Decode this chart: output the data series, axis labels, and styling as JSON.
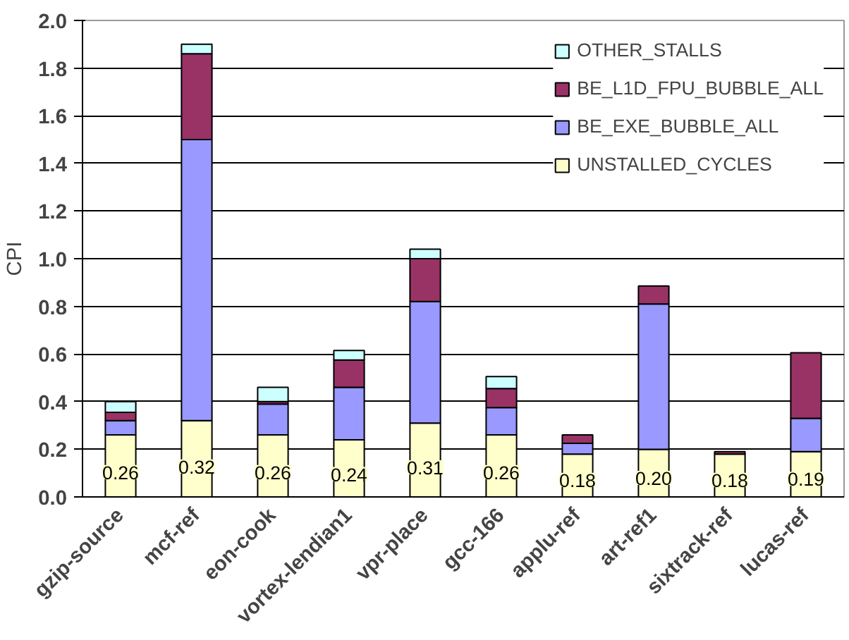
{
  "chart_data": {
    "type": "bar",
    "stacked": true,
    "ylabel": "CPI",
    "categories": [
      "gzip-source",
      "mcf-ref",
      "eon-cook",
      "vortex-lendian1",
      "vpr-place",
      "gcc-166",
      "applu-ref",
      "art-ref1",
      "sixtrack-ref",
      "lucas-ref"
    ],
    "series": [
      {
        "name": "UNSTALLED_CYCLES",
        "color": "#ffffcc",
        "values": [
          0.26,
          0.32,
          0.26,
          0.24,
          0.31,
          0.26,
          0.18,
          0.2,
          0.18,
          0.19
        ],
        "value_labels": [
          "0.26",
          "0.32",
          "0.26",
          "0.24",
          "0.31",
          "0.26",
          "0.18",
          "0.20",
          "0.18",
          "0.19"
        ]
      },
      {
        "name": "BE_EXE_BUBBLE_ALL",
        "color": "#9999ff",
        "values": [
          0.06,
          1.18,
          0.13,
          0.22,
          0.51,
          0.115,
          0.045,
          0.61,
          null,
          0.14
        ]
      },
      {
        "name": "BE_L1D_FPU_BUBBLE_ALL",
        "color": "#993366",
        "values": [
          0.035,
          0.36,
          0.01,
          0.115,
          0.18,
          0.08,
          0.035,
          0.075,
          0.01,
          0.275
        ]
      },
      {
        "name": "OTHER_STALLS",
        "color": "#ccffff",
        "values": [
          0.045,
          0.04,
          0.06,
          0.04,
          0.04,
          0.05,
          null,
          null,
          null,
          null
        ]
      }
    ],
    "ylim": [
      0,
      2.0
    ],
    "yticks": [
      {
        "value": 0,
        "label": "0.0"
      },
      {
        "value": 0.2,
        "label": "0.2"
      },
      {
        "value": 0.4,
        "label": "0.4"
      },
      {
        "value": 0.6,
        "label": "0.6"
      },
      {
        "value": 0.8,
        "label": "0.8"
      },
      {
        "value": 1.0,
        "label": "1.0"
      },
      {
        "value": 1.2,
        "label": "1.2"
      },
      {
        "value": 1.4,
        "label": "1.4"
      },
      {
        "value": 1.6,
        "label": "1.6"
      },
      {
        "value": 1.8,
        "label": "1.8"
      },
      {
        "value": 2.0,
        "label": "2.0"
      }
    ],
    "grid": "y",
    "legend": "top right"
  }
}
